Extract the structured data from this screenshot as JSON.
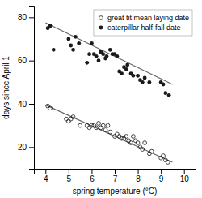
{
  "chart_data": {
    "type": "scatter",
    "xlabel": "spring temperature (°C)",
    "ylabel": "days since April 1",
    "xlim": [
      3.5,
      10.5
    ],
    "ylim": [
      10,
      85
    ],
    "xticks": [
      4,
      5,
      6,
      7,
      8,
      9,
      10
    ],
    "yticks": [
      20,
      40,
      60,
      80
    ],
    "legend": "upper right",
    "series": [
      {
        "name": "great tit mean laying date",
        "color": "#1a1a1a",
        "marker": "circle-open",
        "x": [
          4.1,
          4.2,
          4.9,
          5.0,
          5.1,
          5.2,
          5.5,
          5.8,
          5.9,
          6.0,
          6.1,
          6.2,
          6.3,
          6.4,
          6.5,
          6.6,
          6.7,
          6.8,
          7.0,
          7.1,
          7.2,
          7.3,
          7.4,
          7.5,
          7.6,
          7.7,
          7.8,
          7.9,
          8.0,
          8.1,
          8.2,
          8.3,
          8.5,
          8.6,
          9.0,
          9.1,
          9.2,
          9.3
        ],
        "values": [
          39,
          38,
          33,
          32,
          33,
          34,
          30,
          30,
          29,
          30,
          30,
          29,
          31,
          29,
          30,
          28,
          30,
          27,
          25,
          26,
          25,
          24,
          24,
          25,
          23,
          22,
          25,
          23,
          22,
          20,
          19,
          22,
          17,
          18,
          15,
          16,
          14,
          13
        ]
      },
      {
        "name": "caterpillar half-fall date",
        "color": "#1a1a1a",
        "marker": "circle",
        "x": [
          4.1,
          4.2,
          4.35,
          5.0,
          5.1,
          5.2,
          5.3,
          5.45,
          5.8,
          5.9,
          6.0,
          6.1,
          6.2,
          6.3,
          6.4,
          6.5,
          6.6,
          6.65,
          6.8,
          6.9,
          7.0,
          7.1,
          7.2,
          7.3,
          7.4,
          7.5,
          7.55,
          7.7,
          7.8,
          8.0,
          8.1,
          8.2,
          8.3,
          8.5,
          9.0,
          9.1,
          9.2,
          9.35
        ],
        "values": [
          75,
          76,
          65,
          70,
          67,
          65,
          71,
          68,
          59,
          63,
          68,
          63,
          62,
          60,
          64,
          63,
          61,
          62,
          65,
          63,
          63,
          62,
          55,
          54,
          57,
          56,
          58,
          54,
          53,
          53,
          51,
          50,
          52,
          50,
          50,
          49,
          45,
          44
        ]
      },
      {
        "type": "line",
        "color": "#666666",
        "x": [
          4.0,
          9.5
        ],
        "values": [
          77.5,
          49.0
        ]
      },
      {
        "type": "line",
        "color": "#666666",
        "x": [
          4.0,
          9.5
        ],
        "values": [
          39.5,
          13.0
        ]
      }
    ]
  }
}
